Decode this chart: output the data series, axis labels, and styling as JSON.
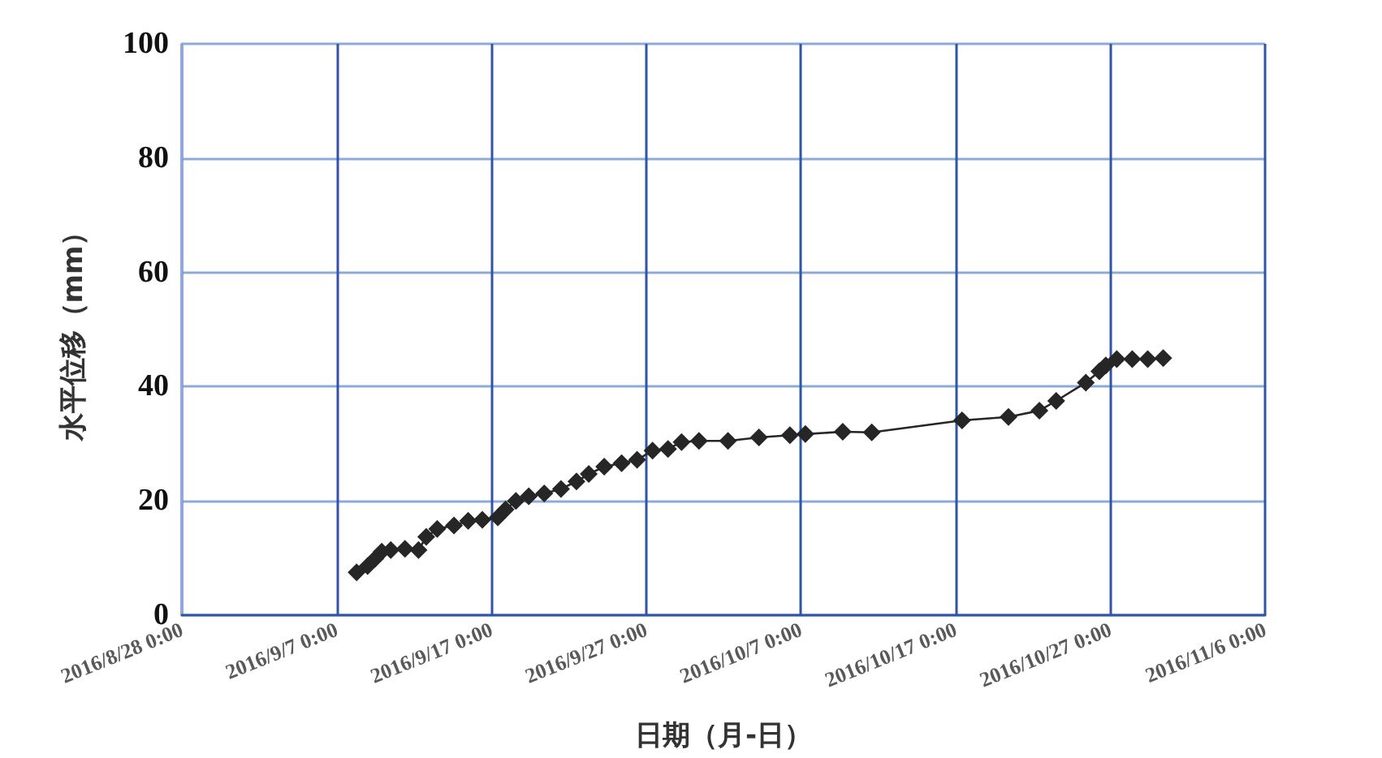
{
  "chart_data": {
    "type": "line",
    "xlabel": "日期（月-日）",
    "ylabel": "水平位移（mm）",
    "x": [
      "2016-09-08T07:00",
      "2016-09-09T00:00",
      "2016-09-09T12:00",
      "2016-09-09T22:00",
      "2016-09-10T12:00",
      "2016-09-11T10:00",
      "2016-09-12T07:00",
      "2016-09-12T19:00",
      "2016-09-13T12:00",
      "2016-09-14T14:00",
      "2016-09-15T12:00",
      "2016-09-16T10:00",
      "2016-09-17T10:00",
      "2016-09-17T22:00",
      "2016-09-18T14:00",
      "2016-09-19T10:00",
      "2016-09-20T10:00",
      "2016-09-21T12:00",
      "2016-09-22T12:00",
      "2016-09-23T07:00",
      "2016-09-24T07:00",
      "2016-09-25T10:00",
      "2016-09-26T10:00",
      "2016-09-27T10:00",
      "2016-09-28T10:00",
      "2016-09-29T07:00",
      "2016-09-30T10:00",
      "2016-10-02T07:00",
      "2016-10-04T07:00",
      "2016-10-06T07:00",
      "2016-10-07T07:00",
      "2016-10-09T17:00",
      "2016-10-11T14:00",
      "2016-10-17T10:00",
      "2016-10-20T10:00",
      "2016-10-22T10:00",
      "2016-10-23T12:00",
      "2016-10-25T10:00",
      "2016-10-26T07:00",
      "2016-10-26T17:00",
      "2016-10-27T10:00",
      "2016-10-28T10:00",
      "2016-10-29T10:00",
      "2016-10-30T10:00"
    ],
    "series": [
      {
        "color": "#262626",
        "values": [
          7.5,
          8.6,
          9.9,
          11.1,
          11.4,
          11.6,
          11.4,
          13.7,
          15.1,
          15.7,
          16.5,
          16.7,
          17.1,
          18.5,
          20.0,
          20.8,
          21.3,
          22.1,
          23.4,
          24.7,
          26.0,
          26.6,
          27.2,
          28.8,
          29.1,
          30.3,
          30.5,
          30.5,
          31.1,
          31.5,
          31.7,
          32.1,
          32.0,
          34.1,
          34.7,
          35.8,
          37.5,
          40.7,
          42.7,
          43.7,
          44.8,
          44.8,
          44.8,
          45.0
        ]
      }
    ],
    "xlim": [
      "2016-08-28",
      "2016-11-06"
    ],
    "xticks": [
      {
        "value": "2016-08-28",
        "label": "2016/8/28 0:00"
      },
      {
        "value": "2016-09-07",
        "label": "2016/9/7 0:00"
      },
      {
        "value": "2016-09-17",
        "label": "2016/9/17 0:00"
      },
      {
        "value": "2016-09-27",
        "label": "2016/9/27 0:00"
      },
      {
        "value": "2016-10-07",
        "label": "2016/10/7 0:00"
      },
      {
        "value": "2016-10-17",
        "label": "2016/10/17 0:00"
      },
      {
        "value": "2016-10-27",
        "label": "2016/10/27 0:00"
      },
      {
        "value": "2016-11-06",
        "label": "2016/11/6 0:00"
      }
    ],
    "ylim": [
      0,
      100
    ],
    "yticks": [
      0,
      20,
      40,
      60,
      80,
      100
    ],
    "grid": true,
    "marker": "diamond",
    "line_style": "solid"
  }
}
